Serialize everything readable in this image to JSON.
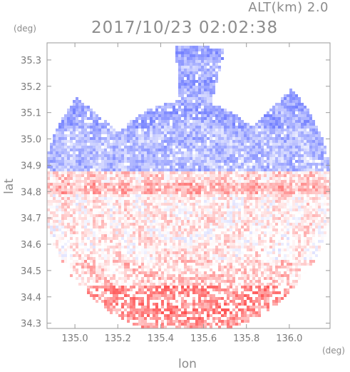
{
  "header": {
    "altitude": "ALT(km) 2.0",
    "timestamp": "2017/10/23 02:02:38"
  },
  "chart_data": {
    "type": "heatmap",
    "xlabel": "lon",
    "ylabel": "lat",
    "xunit": "(deg)",
    "yunit": "(deg)",
    "xlim": [
      134.87,
      136.19
    ],
    "ylim": [
      34.28,
      35.365
    ],
    "xticks": [
      "135.0",
      "135.2",
      "135.4",
      "135.6",
      "135.8",
      "136.0"
    ],
    "yticks": [
      "34.3",
      "34.4",
      "34.5",
      "34.6",
      "34.7",
      "34.8",
      "34.9",
      "35.0",
      "35.1",
      "35.2",
      "35.3"
    ],
    "color_scale": {
      "negative": "#5060ff",
      "zero": "#ffffff",
      "positive": "#ff3030"
    },
    "field": {
      "center": [
        135.52,
        34.81
      ],
      "radius_deg_lat": 0.55,
      "bands": [
        {
          "lat_min": 34.8,
          "lat_max": 34.84,
          "level": 0.35
        },
        {
          "lat_min": 34.84,
          "lat_max": 34.88,
          "level": 0.2
        },
        {
          "lat_min": 34.88,
          "lat_max": 35.05,
          "level": -0.4
        },
        {
          "lat_min": 35.05,
          "lat_max": 35.365,
          "level": -0.5
        },
        {
          "lat_min": 34.55,
          "lat_max": 34.8,
          "level": 0.1
        },
        {
          "lat_min": 34.45,
          "lat_max": 34.55,
          "level": 0.25
        },
        {
          "lat_min": 34.28,
          "lat_max": 34.45,
          "level": 0.55
        }
      ]
    }
  }
}
